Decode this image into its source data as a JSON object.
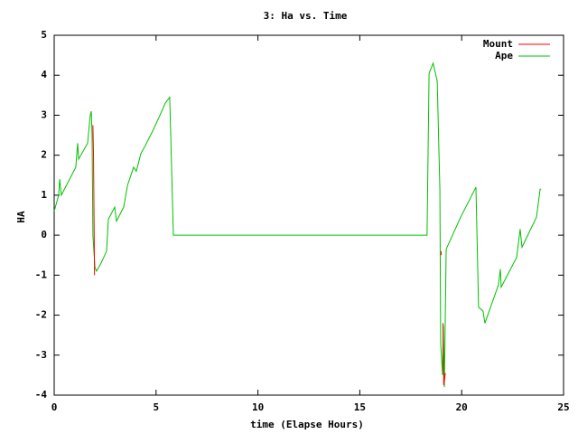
{
  "chart_data": {
    "type": "line",
    "title": "3: Ha vs. Time",
    "xlabel": "time (Elapse Hours)",
    "ylabel": "HA",
    "xlim": [
      0,
      25
    ],
    "ylim": [
      -4,
      5
    ],
    "xticks": [
      0,
      5,
      10,
      15,
      20,
      25
    ],
    "yticks": [
      -4,
      -3,
      -2,
      -1,
      0,
      1,
      2,
      3,
      4,
      5
    ],
    "legend": "upper right",
    "series": [
      {
        "name": "Mount",
        "color": "#ff0000",
        "x": [
          1.9,
          1.93,
          1.98,
          18.98,
          18.99,
          19.0,
          19.03,
          19.08,
          19.12,
          19.2
        ],
        "values": [
          2.75,
          2.0,
          -1.0,
          null,
          -0.4,
          -0.5,
          null,
          -2.2,
          -3.75,
          -3.45
        ]
      },
      {
        "name": "Ape",
        "color": "#00c000",
        "x": [
          0,
          0.22,
          0.27,
          0.35,
          1.06,
          1.15,
          1.2,
          1.64,
          1.77,
          1.82,
          1.86,
          1.9,
          2.0,
          2.08,
          2.3,
          2.57,
          2.66,
          2.97,
          3.06,
          3.41,
          3.6,
          3.9,
          4.03,
          4.26,
          4.43,
          4.83,
          5.19,
          5.45,
          5.67,
          5.85,
          18.3,
          18.4,
          18.6,
          18.8,
          18.93,
          18.97,
          19.06,
          19.1,
          19.15,
          19.24,
          19.95,
          20.7,
          20.83,
          21.05,
          21.14,
          21.8,
          21.9,
          21.94,
          22.7,
          22.87,
          22.96,
          23.67,
          23.85,
          23.9
        ],
        "values": [
          0.6,
          1.0,
          1.4,
          1.0,
          1.7,
          2.3,
          1.9,
          2.3,
          3.0,
          3.1,
          2.5,
          0.0,
          -0.8,
          -0.9,
          -0.7,
          -0.4,
          0.4,
          0.7,
          0.35,
          0.7,
          1.25,
          1.7,
          1.6,
          2.05,
          2.2,
          2.6,
          3.0,
          3.3,
          3.45,
          0.0,
          0.0,
          4.05,
          4.3,
          3.85,
          1.15,
          -2.7,
          -3.5,
          -2.25,
          -3.8,
          -0.35,
          0.45,
          1.2,
          -1.8,
          -1.9,
          -2.2,
          -1.25,
          -0.85,
          -1.3,
          -0.55,
          0.15,
          -0.3,
          0.45,
          1.15,
          1.15
        ]
      }
    ]
  }
}
